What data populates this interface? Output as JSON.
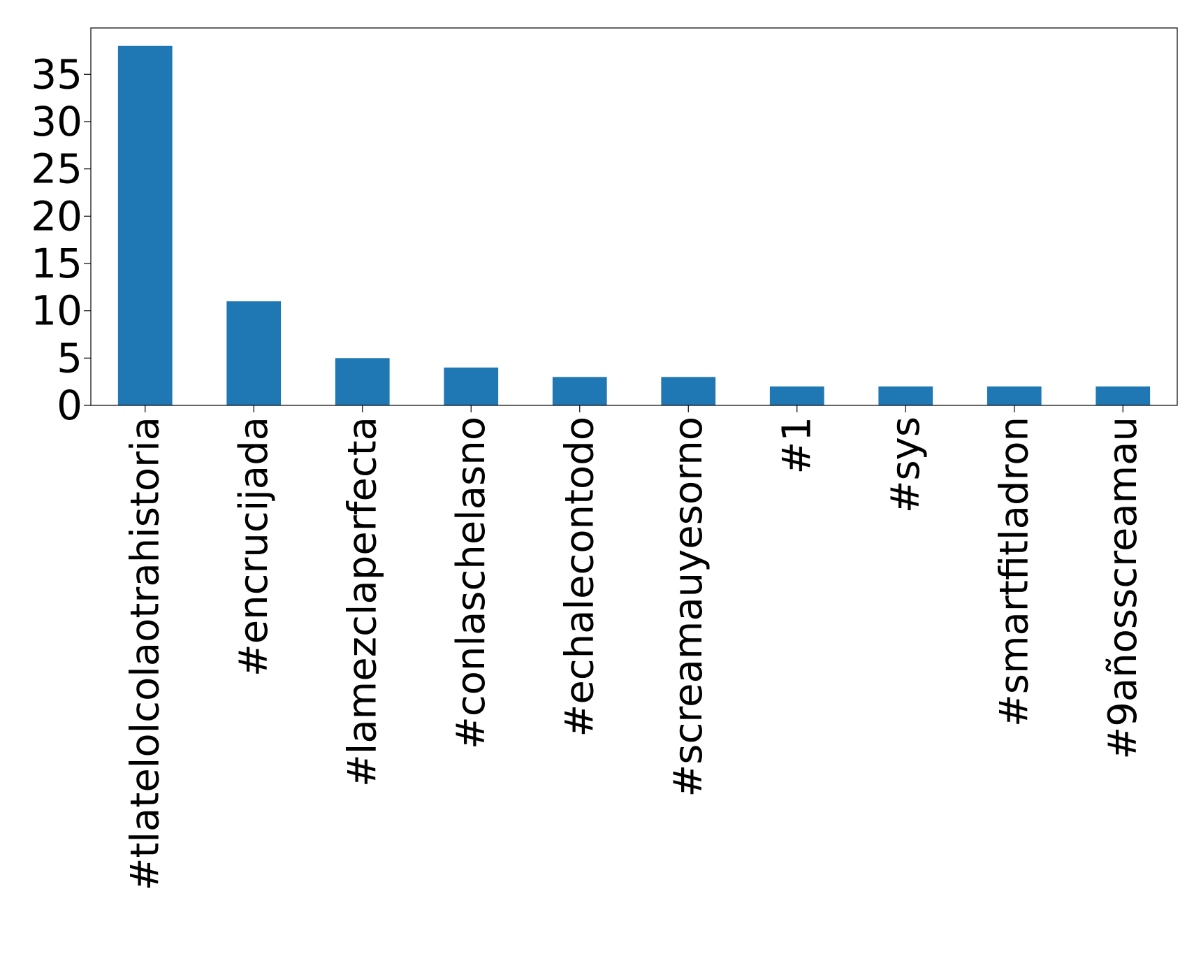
{
  "chart_data": {
    "type": "bar",
    "categories": [
      "#tlatelolcolaotrahistoria",
      "#encrucijada",
      "#lamezclaperfecta",
      "#conlaschelasno",
      "#echalecontodo",
      "#screamauyesorno",
      "#1",
      "#sys",
      "#smartfitladron",
      "#9añosscreamau"
    ],
    "values": [
      38,
      11,
      5,
      4,
      3,
      3,
      2,
      2,
      2,
      2
    ],
    "yticks": [
      0,
      5,
      10,
      15,
      20,
      25,
      30,
      35
    ],
    "ylim": [
      0,
      39.9
    ],
    "title": "",
    "xlabel": "",
    "ylabel": "",
    "grid": false,
    "legend": "none",
    "bar_color": "#1f77b4"
  }
}
